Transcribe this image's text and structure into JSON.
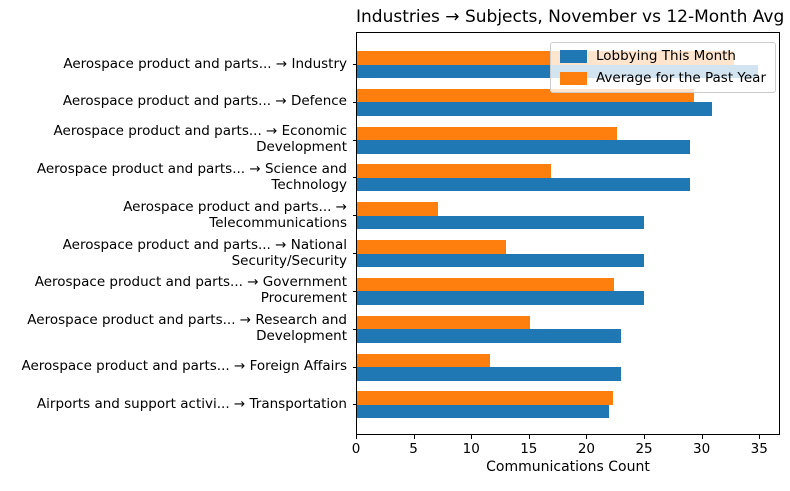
{
  "chart_data": {
    "type": "bar",
    "orientation": "horizontal",
    "title": "Industries → Subjects, November vs 12-Month Avg",
    "xlabel": "Communications Count",
    "ylabel": "",
    "xlim": [
      0,
      36.8
    ],
    "xticks": [
      0,
      5,
      10,
      15,
      20,
      25,
      30,
      35
    ],
    "grid": false,
    "legend_position": "upper right",
    "categories": [
      "Aerospace product and parts... → Industry",
      "Aerospace product and parts... → Defence",
      "Aerospace product and parts... → Economic Development",
      "Aerospace product and parts... → Science and Technology",
      "Aerospace product and parts... → Telecommunications",
      "Aerospace product and parts... → National Security/Security",
      "Aerospace product and parts... → Government Procurement",
      "Aerospace product and parts... → Research and Development",
      "Aerospace product and parts... → Foreign Affairs",
      "Airports and support activi... → Transportation"
    ],
    "category_label_lines": [
      [
        "Aerospace product and parts... → Industry"
      ],
      [
        "Aerospace product and parts... → Defence"
      ],
      [
        "Aerospace product and parts... → Economic",
        "Development"
      ],
      [
        "Aerospace product and parts... → Science and",
        "Technology"
      ],
      [
        "Aerospace product and parts... →",
        "Telecommunications"
      ],
      [
        "Aerospace product and parts... → National",
        "Security/Security"
      ],
      [
        "Aerospace product and parts... → Government",
        "Procurement"
      ],
      [
        "Aerospace product and parts... → Research and",
        "Development"
      ],
      [
        "Aerospace product and parts... → Foreign Affairs"
      ],
      [
        "Airports and support activi... → Transportation"
      ]
    ],
    "series": [
      {
        "name": "Lobbying This Month",
        "color": "#1f77b4",
        "values": [
          35,
          31,
          29,
          29,
          25,
          25,
          25,
          23,
          23,
          22
        ]
      },
      {
        "name": "Average for the Past Year",
        "color": "#ff7f0e",
        "values": [
          32.9,
          29.4,
          22.7,
          16.9,
          7.1,
          13.0,
          22.4,
          15.1,
          11.6,
          22.3
        ]
      }
    ]
  }
}
